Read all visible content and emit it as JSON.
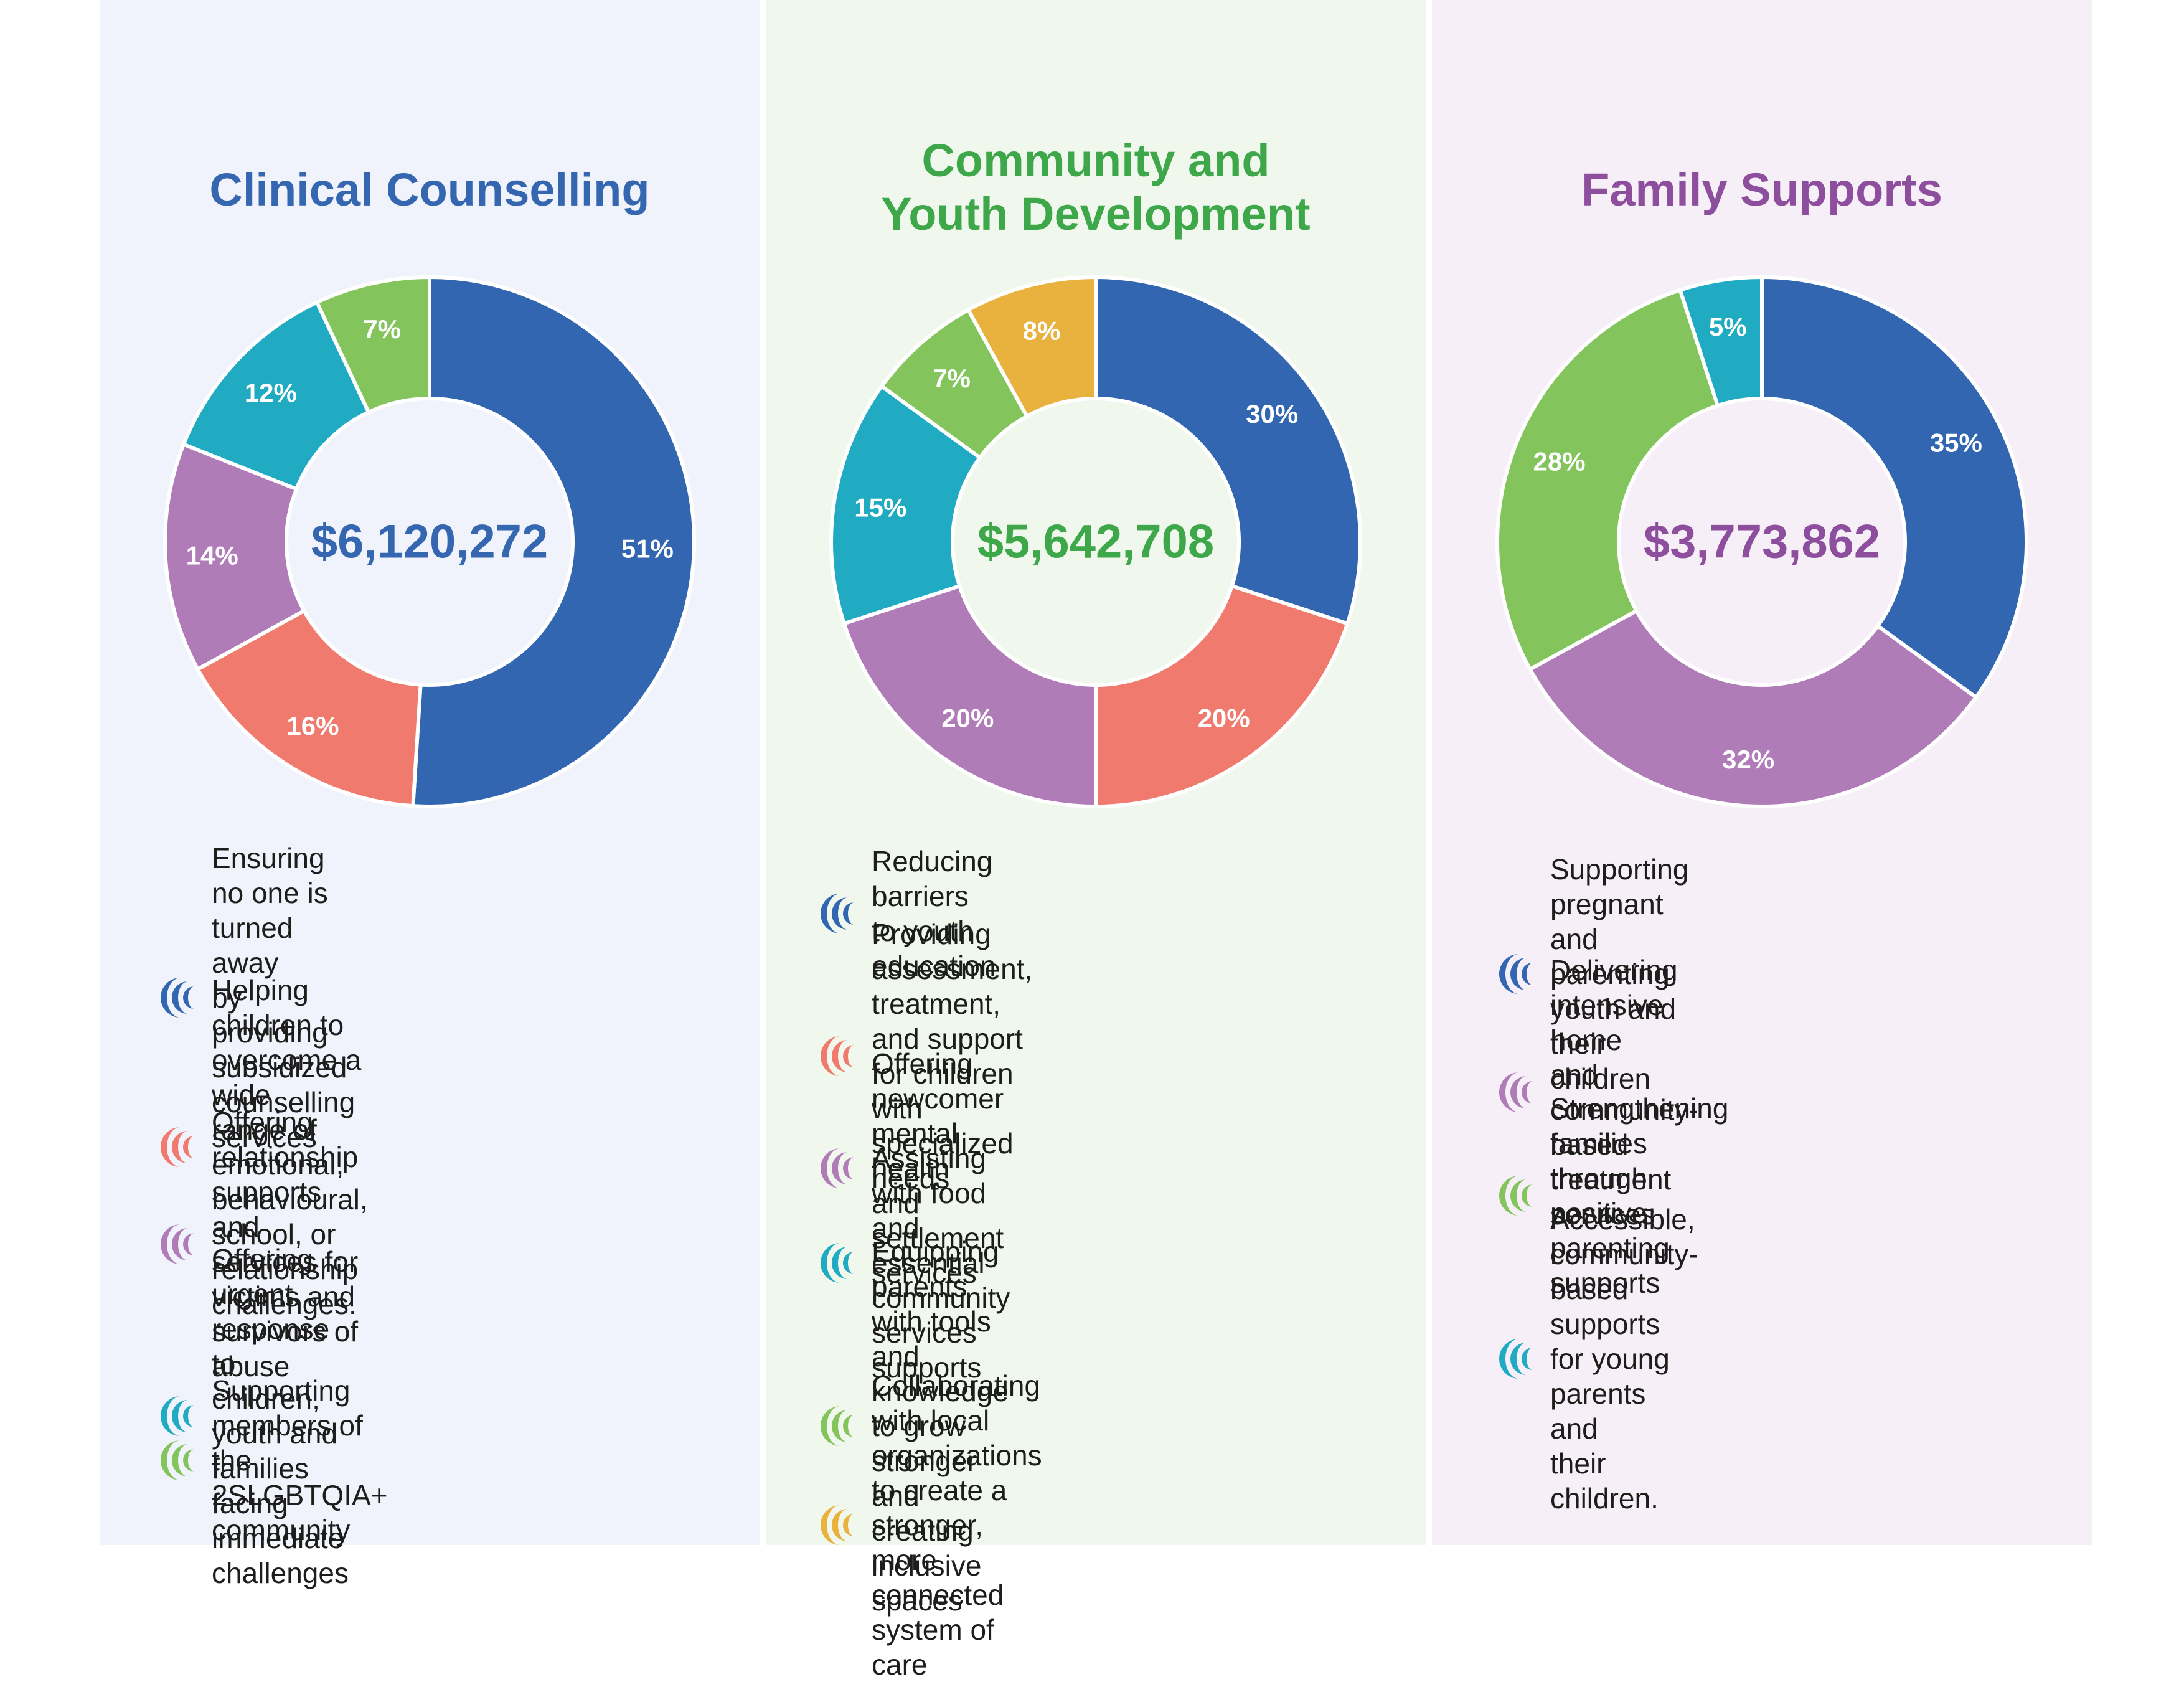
{
  "colors": {
    "blue": "#3366b0",
    "coral": "#f07a6d",
    "purple": "#b07cb8",
    "teal": "#21abc3",
    "green": "#84c45d",
    "orange": "#e9b23f",
    "title_blue": "#3566b0",
    "title_green": "#3ea74a",
    "title_purple": "#8e4e9e",
    "panel1_bg": "#f0f3fb",
    "panel2_bg": "#f0f8ee",
    "panel3_bg": "#f6eff7"
  },
  "chart_data": [
    {
      "type": "pie",
      "title": "Clinical Counselling",
      "total": "$6,120,272",
      "slices": [
        {
          "label": "51%",
          "value": 51,
          "color": "blue"
        },
        {
          "label": "16%",
          "value": 16,
          "color": "coral"
        },
        {
          "label": "14%",
          "value": 14,
          "color": "purple"
        },
        {
          "label": "12%",
          "value": 12,
          "color": "teal"
        },
        {
          "label": "7%",
          "value": 7,
          "color": "green"
        }
      ]
    },
    {
      "type": "pie",
      "title": "Community and\nYouth Development",
      "total": "$5,642,708",
      "slices": [
        {
          "label": "30%",
          "value": 30,
          "color": "blue"
        },
        {
          "label": "20%",
          "value": 20,
          "color": "coral"
        },
        {
          "label": "20%",
          "value": 20,
          "color": "purple"
        },
        {
          "label": "15%",
          "value": 15,
          "color": "teal"
        },
        {
          "label": "7%",
          "value": 7,
          "color": "green"
        },
        {
          "label": "8%",
          "value": 8,
          "color": "orange"
        }
      ]
    },
    {
      "type": "pie",
      "title": "Family Supports",
      "total": "$3,773,862",
      "slices": [
        {
          "label": "35%",
          "value": 35,
          "color": "blue"
        },
        {
          "label": "32%",
          "value": 32,
          "color": "purple"
        },
        {
          "label": "28%",
          "value": 28,
          "color": "green"
        },
        {
          "label": "5%",
          "value": 5,
          "color": "teal"
        }
      ]
    }
  ],
  "panels": [
    {
      "legend": [
        {
          "color": "blue",
          "text": "Ensuring no one is turned away\nby providing subsidized\ncounselling services"
        },
        {
          "color": "coral",
          "text": "Helping children to overcome a wide\nrange of emotional, behavioural,\nschool, or relationship challenges."
        },
        {
          "color": "purple",
          "text": "Offering relationship supports\nand services for victims and\nsurvivors of abuse"
        },
        {
          "color": "teal",
          "text": "Offering urgent response to\nchildren, youth and families\nfacing immediate challenges"
        },
        {
          "color": "green",
          "text": "Supporting members of the\n2SLGBTQIA+ community"
        }
      ]
    },
    {
      "legend": [
        {
          "color": "blue",
          "text": "Reducing barriers to youth education"
        },
        {
          "color": "coral",
          "text": "Providing assessment, treatment,\nand support for children with\nspecialized needs"
        },
        {
          "color": "purple",
          "text": "Offering newcomer mental\nhealth and settlement services"
        },
        {
          "color": "teal",
          "text": "Assisting with food and essential\ncommunity services supports"
        },
        {
          "color": "green",
          "text": "Equipping parents with tools and\nknowledge to grow stronger and\ncreating inclusive spaces"
        },
        {
          "color": "orange",
          "text": "Collaborating with local\norganizations to create a stronger,\nmore connected system of care"
        }
      ]
    },
    {
      "legend": [
        {
          "color": "blue",
          "text": "Supporting pregnant and\nparenting youth and their children"
        },
        {
          "color": "purple",
          "text": "Delivering intensive home\nand community-based\ntreatment services"
        },
        {
          "color": "green",
          "text": "Strengthening families through\npositive parenting supports"
        },
        {
          "color": "teal",
          "text": "Accessible, community-based\nsupports for young parents and\ntheir children."
        }
      ]
    }
  ]
}
